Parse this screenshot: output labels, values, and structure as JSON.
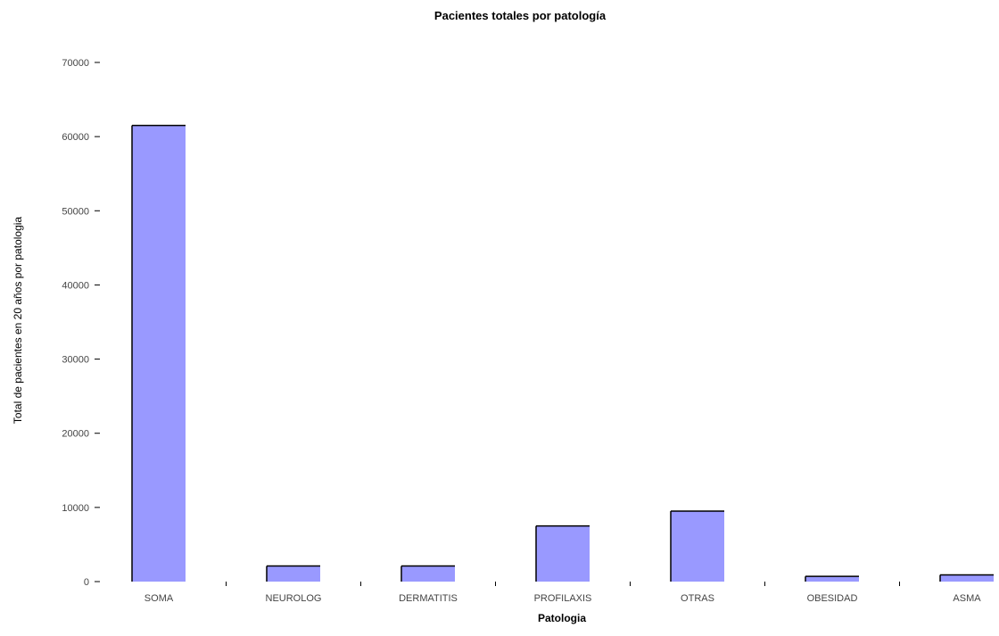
{
  "chart_data": {
    "type": "bar",
    "title": "Pacientes totales por patología",
    "xlabel": "Patologia",
    "ylabel": "Total de pacientes en 20 años por patologia",
    "categories": [
      "SOMA",
      "NEUROLOG",
      "DERMATITIS",
      "PROFILAXIS",
      "OTRAS",
      "OBESIDAD",
      "ASMA"
    ],
    "values": [
      61500,
      2100,
      2100,
      7500,
      9500,
      700,
      900
    ],
    "ylim": [
      0,
      70000
    ],
    "yticks": [
      0,
      10000,
      20000,
      30000,
      40000,
      50000,
      60000,
      70000
    ],
    "ytick_labels": [
      "0",
      "10000",
      "20000",
      "30000",
      "40000",
      "50000",
      "60000",
      "70000"
    ],
    "grid": false,
    "legend": "none",
    "bar_color": "#9999ff",
    "bar_edge_color": "#000000"
  }
}
